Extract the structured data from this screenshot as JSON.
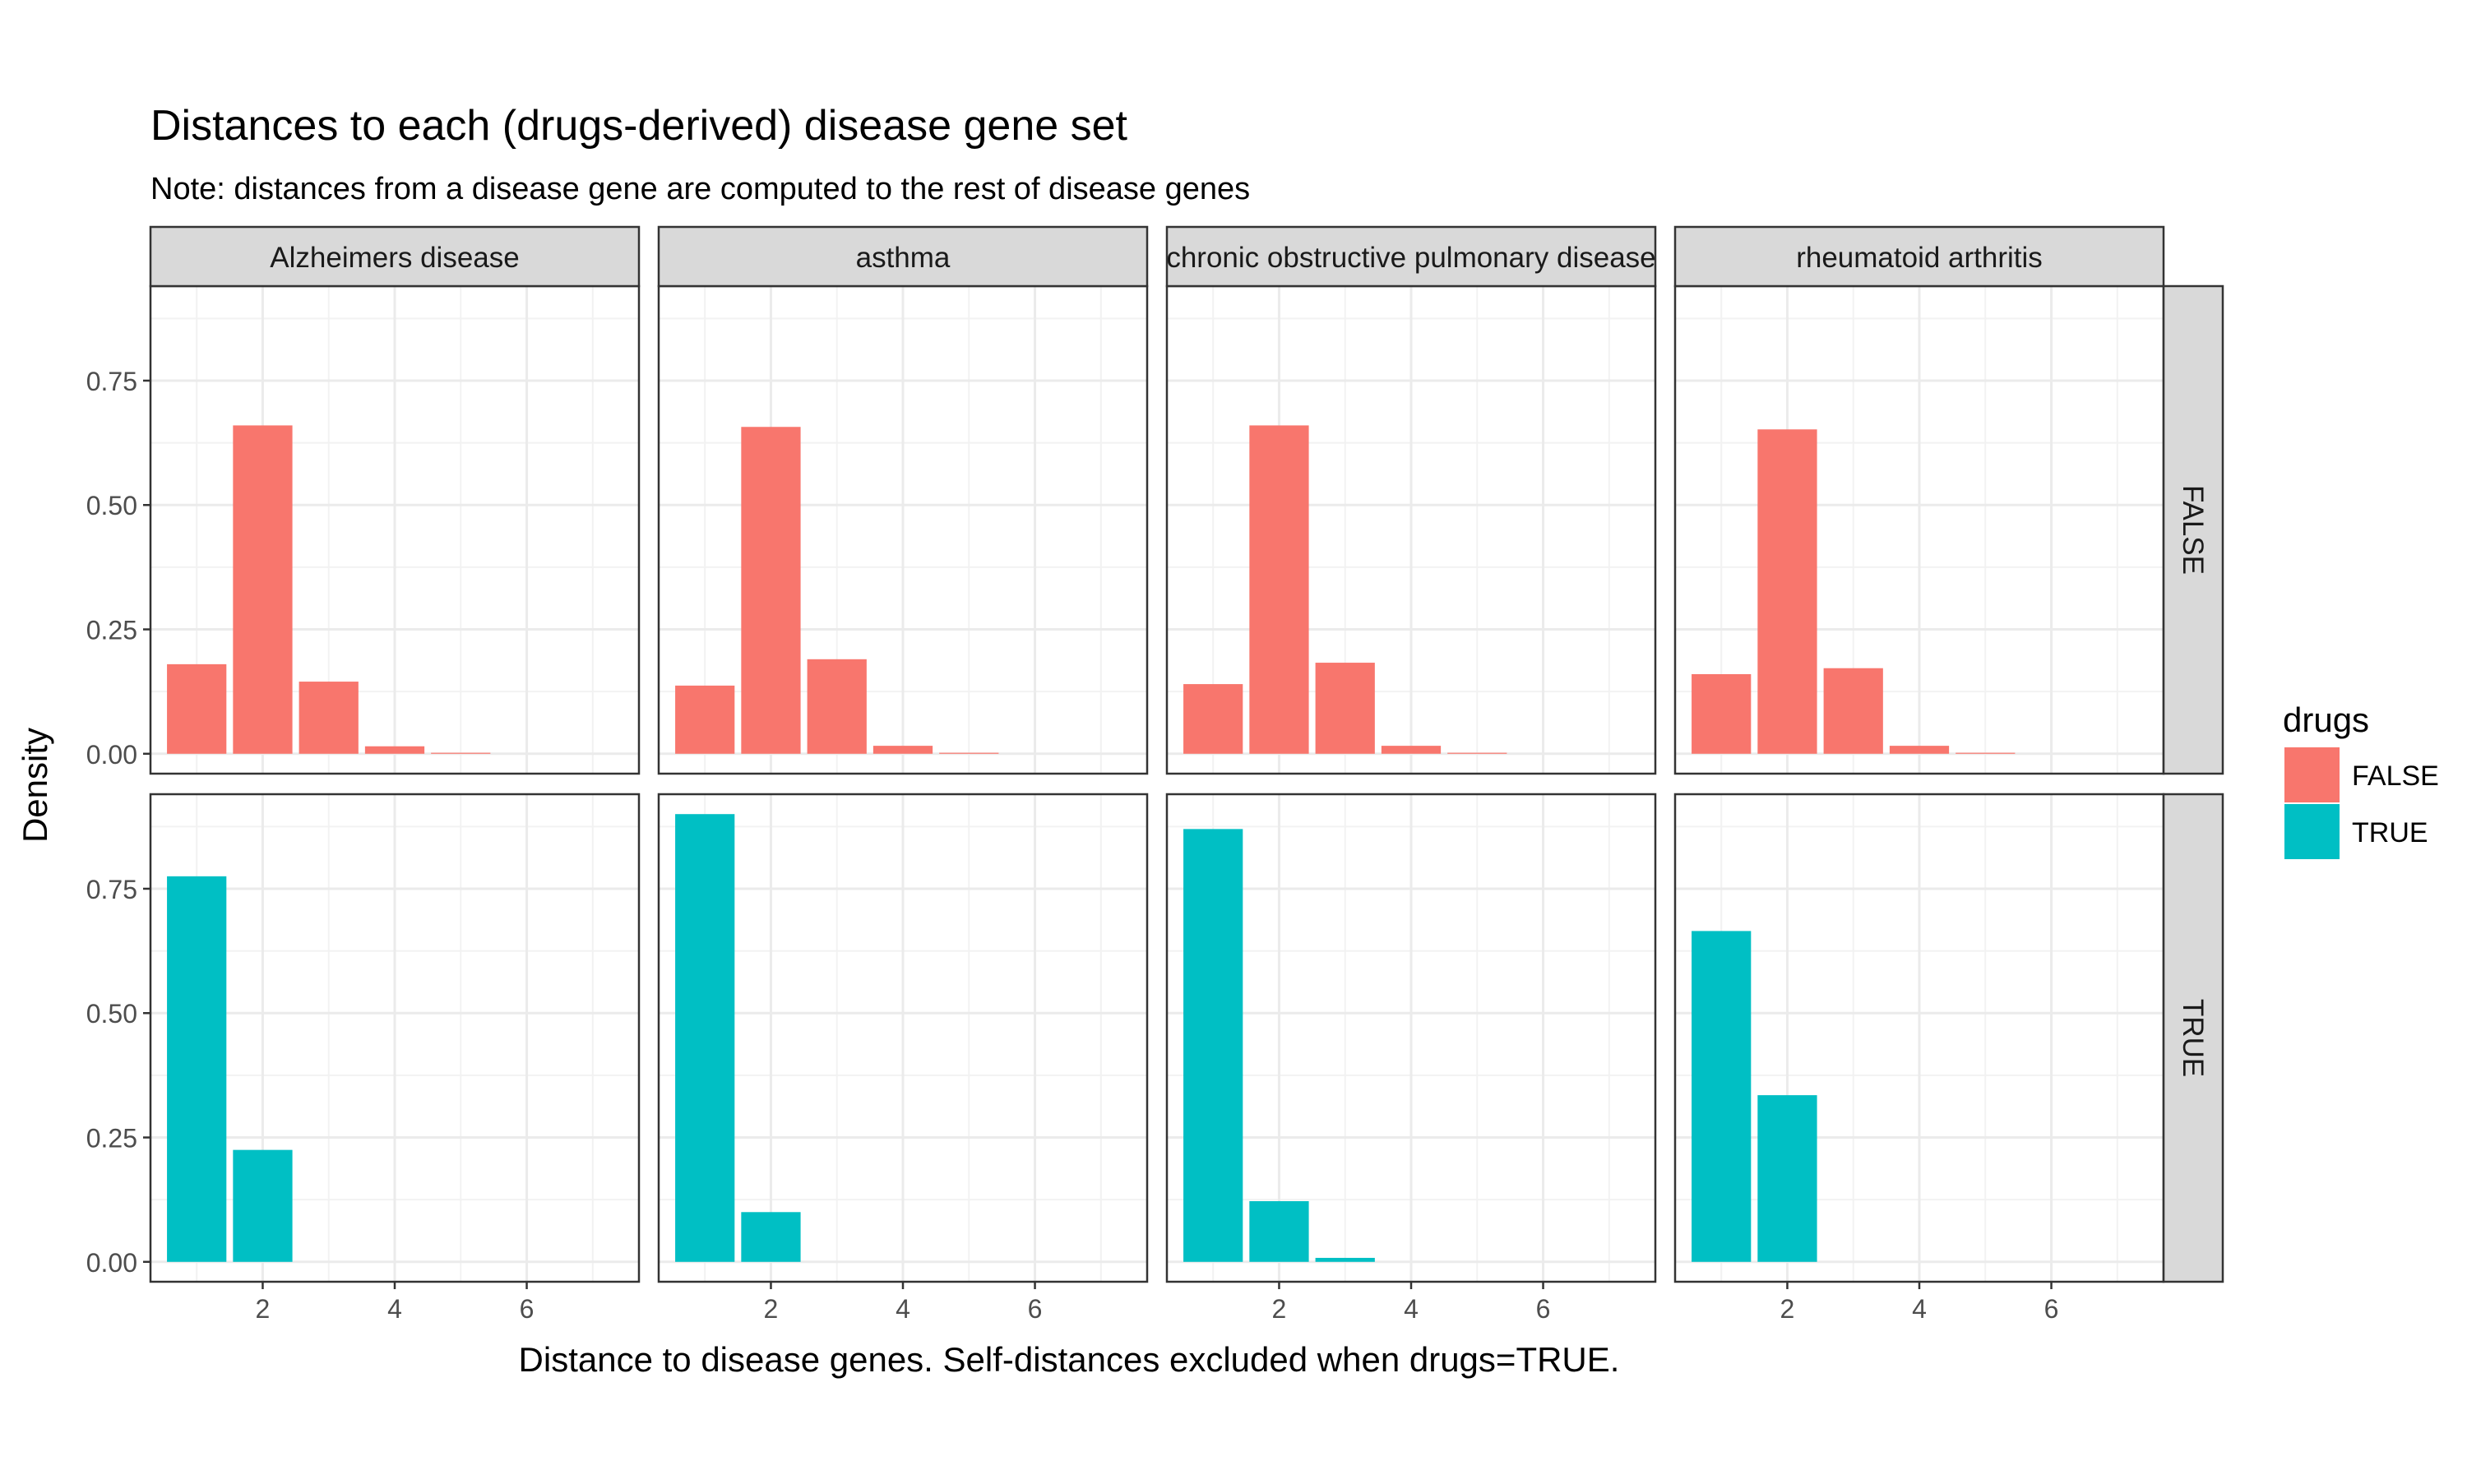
{
  "chart_data": {
    "type": "bar",
    "title": "Distances to each (drugs-derived) disease gene set",
    "subtitle": "Note: distances from a disease gene are computed to the rest of disease genes",
    "xlabel": "Distance to disease genes. Self-distances excluded when drugs=TRUE.",
    "ylabel": "Density",
    "xlim": [
      0.3,
      7.7
    ],
    "ylim": [
      -0.04,
      0.94
    ],
    "x_ticks": [
      2,
      4,
      6
    ],
    "y_ticks": [
      0,
      0.25,
      0.5,
      0.75
    ],
    "y_tick_labels": [
      "0.00",
      "0.25",
      "0.50",
      "0.75"
    ],
    "grid": true,
    "column_facets": [
      "Alzheimers disease",
      "asthma",
      "chronic obstructive pulmonary disease",
      "rheumatoid arthritis"
    ],
    "row_facets": [
      "FALSE",
      "TRUE"
    ],
    "legend": {
      "title": "drugs",
      "position": "right",
      "entries": [
        {
          "label": "FALSE",
          "color": "#F8766D"
        },
        {
          "label": "TRUE",
          "color": "#00BFC4"
        }
      ]
    },
    "x": [
      1,
      2,
      3,
      4,
      5
    ],
    "panels": [
      {
        "disease": "Alzheimers disease",
        "drugs": "FALSE",
        "values": [
          0.18,
          0.66,
          0.145,
          0.015,
          0.002
        ]
      },
      {
        "disease": "asthma",
        "drugs": "FALSE",
        "values": [
          0.137,
          0.657,
          0.19,
          0.016,
          0.002
        ]
      },
      {
        "disease": "chronic obstructive pulmonary disease",
        "drugs": "FALSE",
        "values": [
          0.14,
          0.66,
          0.183,
          0.016,
          0.002
        ]
      },
      {
        "disease": "rheumatoid arthritis",
        "drugs": "FALSE",
        "values": [
          0.16,
          0.652,
          0.172,
          0.016,
          0.002
        ]
      },
      {
        "disease": "Alzheimers disease",
        "drugs": "TRUE",
        "values": [
          0.775,
          0.225
        ]
      },
      {
        "disease": "asthma",
        "drugs": "TRUE",
        "values": [
          0.9,
          0.1
        ]
      },
      {
        "disease": "chronic obstructive pulmonary disease",
        "drugs": "TRUE",
        "values": [
          0.87,
          0.122,
          0.008
        ]
      },
      {
        "disease": "rheumatoid arthritis",
        "drugs": "TRUE",
        "values": [
          0.665,
          0.335
        ]
      }
    ]
  }
}
